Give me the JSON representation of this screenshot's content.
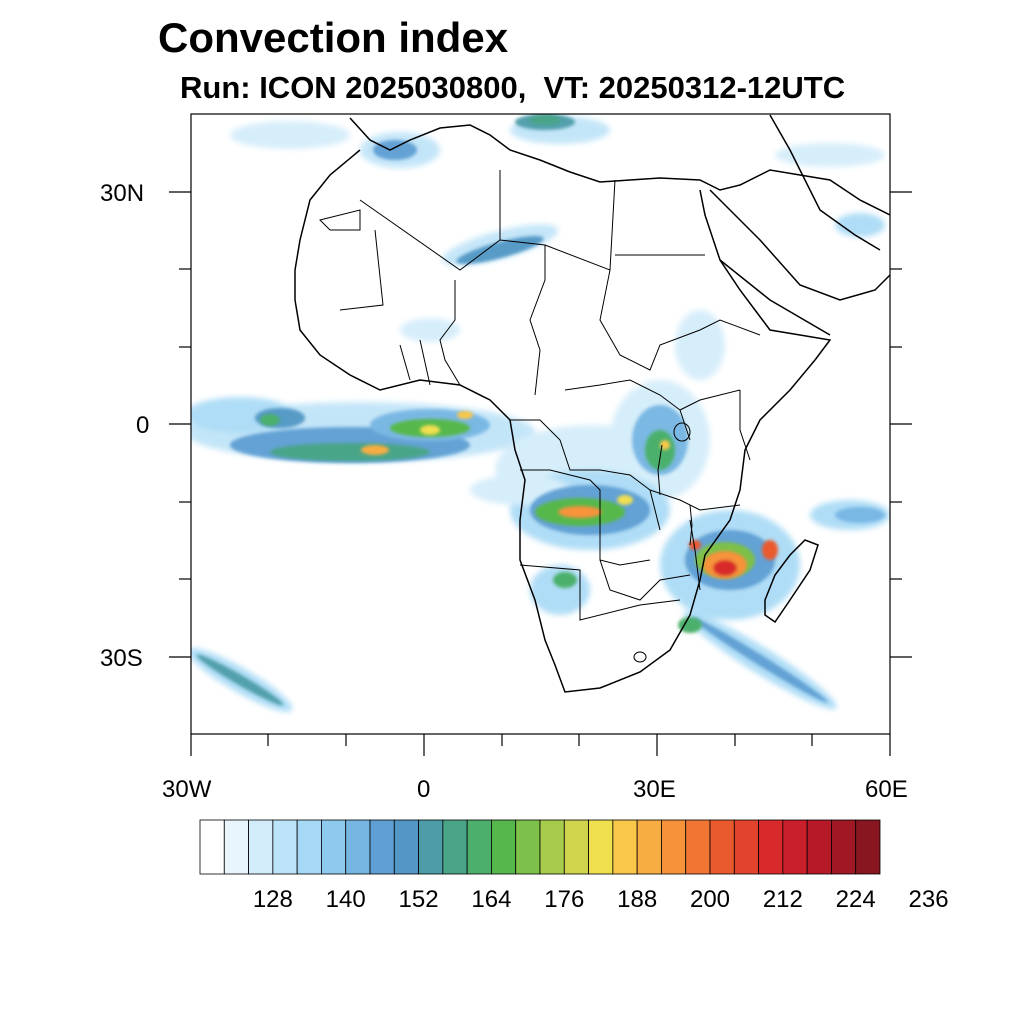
{
  "header": {
    "title": "Convection index",
    "subtitle": "Run: ICON 2025030800,  VT: 20250312-12UTC"
  },
  "axes": {
    "lat_labels": [
      "30N",
      "0",
      "30S"
    ],
    "lon_labels": [
      "30W",
      "0",
      "30E",
      "60E"
    ]
  },
  "colorbar": {
    "labels": [
      "128",
      "140",
      "152",
      "164",
      "176",
      "188",
      "200",
      "212",
      "224",
      "236"
    ],
    "colors": [
      "#ffffff",
      "#e9f5fd",
      "#d2ecfa",
      "#bde3f8",
      "#a6d9f5",
      "#8ec9ee",
      "#77b6e3",
      "#5f9fd3",
      "#5297c5",
      "#4e9ca8",
      "#4aa588",
      "#4cb06c",
      "#56b84c",
      "#7dc04a",
      "#a7cb4b",
      "#cfd44c",
      "#f0df4f",
      "#f9c84a",
      "#f8ad42",
      "#f6933a",
      "#f17634",
      "#ea5a2f",
      "#e2432c",
      "#d82a2b",
      "#c91f2b",
      "#b61a28",
      "#a01824",
      "#881620"
    ]
  },
  "map": {
    "region": "Africa",
    "lon_range": [
      -30,
      60
    ],
    "lat_range": [
      -40,
      40
    ]
  }
}
